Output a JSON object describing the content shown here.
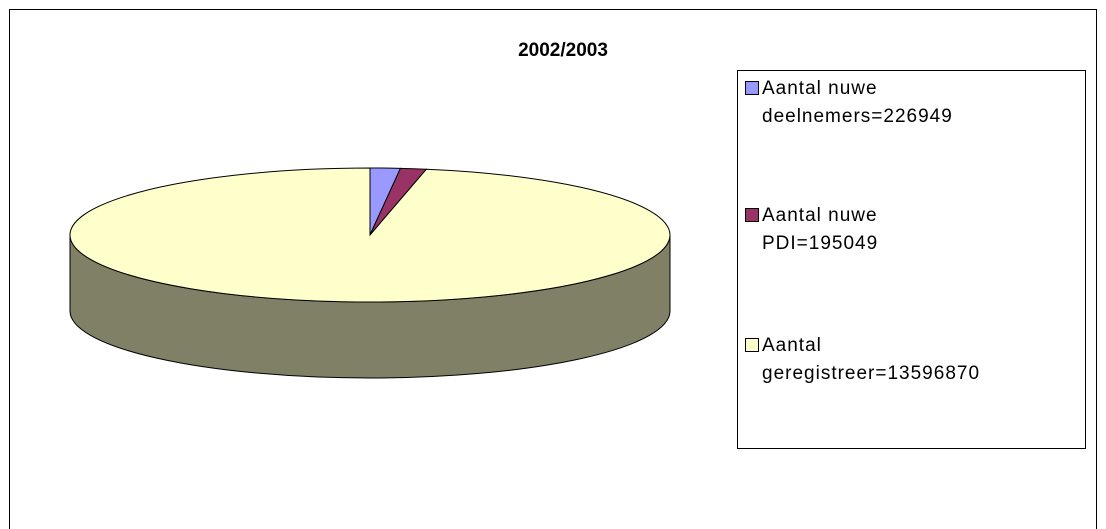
{
  "chart_data": {
    "type": "pie",
    "title": "2002/2003",
    "categories": [
      "Aantal nuwe deelnemers=226949",
      "Aantal nuwe PDI=195049",
      "Aantal geregistreer=13596870"
    ],
    "values": [
      226949,
      195049,
      13596870
    ],
    "colors": [
      "#9999ff",
      "#993366",
      "#ffffcc"
    ],
    "legend": "right"
  }
}
